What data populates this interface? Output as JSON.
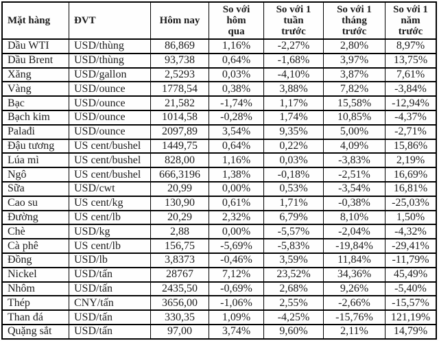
{
  "table": {
    "title": "commodity-price-table",
    "border_color": "#000000",
    "text_color": "#1b1b1b",
    "headers": [
      "Mặt hàng",
      "ĐVT",
      "Hôm nay",
      "So với\nhôm\nqua",
      "So với 1\ntuần\ntrước",
      "So với 1\ntháng\ntrước",
      "So với 1\nnăm\ntrước"
    ],
    "rows": [
      [
        "Dầu WTI",
        "USD/thùng",
        "86,869",
        "1,16%",
        "-2,27%",
        "2,80%",
        "8,97%"
      ],
      [
        "Dầu Brent",
        "USD/thùng",
        "93,738",
        "0,64%",
        "-1,68%",
        "3,97%",
        "13,75%"
      ],
      [
        "Xăng",
        "USD/gallon",
        "2,5293",
        "0,03%",
        "-4,10%",
        "3,87%",
        "7,61%"
      ],
      [
        "Vàng",
        "USD/ounce",
        "1778,54",
        "0,38%",
        "3,88%",
        "7,82%",
        "-3,84%"
      ],
      [
        "Bạc",
        "USD/ounce",
        "21,582",
        "-1,74%",
        "1,17%",
        "15,58%",
        "-12,94%"
      ],
      [
        "Bạch kim",
        "USD/ounce",
        "1014,58",
        "-0,28%",
        "1,74%",
        "10,85%",
        "-4,37%"
      ],
      [
        "Palađi",
        "USD/ounce",
        "2097,89",
        "3,54%",
        "9,35%",
        "5,00%",
        "-2,71%"
      ],
      [
        "Đậu tương",
        "US cent/bushel",
        "1449,75",
        "0,64%",
        "0,22%",
        "4,09%",
        "15,86%"
      ],
      [
        "Lúa mì",
        "US cent/bushel",
        "828,00",
        "1,16%",
        "0,03%",
        "-3,83%",
        "2,19%"
      ],
      [
        "Ngô",
        "US cent/bushel",
        "666,3196",
        "1,38%",
        "-0,18%",
        "-2,51%",
        "16,69%"
      ],
      [
        "Sữa",
        "USD/cwt",
        "20,99",
        "0,00%",
        "0,53%",
        "-3,54%",
        "16,81%"
      ],
      [
        "Cao su",
        "US cent/kg",
        "130,90",
        "0,61%",
        "1,71%",
        "-0,38%",
        "-25,03%"
      ],
      [
        "Đường",
        "US cent/lb",
        "20,29",
        "2,32%",
        "6,79%",
        "8,10%",
        "1,50%"
      ],
      [
        "Chè",
        "USD/kg",
        "2,88",
        "0,00%",
        "-5,57%",
        "-2,04%",
        "-4,32%"
      ],
      [
        "Cà phê",
        "US cent/lb",
        "156,75",
        "-5,69%",
        "-5,83%",
        "-19,84%",
        "-29,41%"
      ],
      [
        "Đồng",
        "USD/lb",
        "3,8373",
        "-0,46%",
        "3,59%",
        "11,84%",
        "-11,79%"
      ],
      [
        "Nickel",
        "USD/tấn",
        "28767",
        "7,12%",
        "23,52%",
        "34,36%",
        "45,49%"
      ],
      [
        "Nhôm",
        "USD/tấn",
        "2435,50",
        "-0,69%",
        "2,68%",
        "9,26%",
        "-5,40%"
      ],
      [
        "Thép",
        "CNY/tấn",
        "3656,00",
        "-1,06%",
        "2,55%",
        "-2,66%",
        "-15,57%"
      ],
      [
        "Than đá",
        "USD/tấn",
        "330,35",
        "1,09%",
        "-4,25%",
        "-15,76%",
        "121,19%"
      ],
      [
        "Quặng sắt",
        "USD/tấn",
        "97,00",
        "3,74%",
        "9,60%",
        "2,11%",
        "14,79%"
      ]
    ],
    "column_names": [
      "commodity-cell",
      "unit-cell",
      "price-today-cell",
      "change-1day-cell",
      "change-1week-cell",
      "change-1month-cell",
      "change-1year-cell"
    ],
    "header_names": [
      "column-header-commodity",
      "column-header-unit",
      "column-header-today",
      "column-header-vs-yesterday",
      "column-header-vs-1week",
      "column-header-vs-1month",
      "column-header-vs-1year"
    ]
  }
}
